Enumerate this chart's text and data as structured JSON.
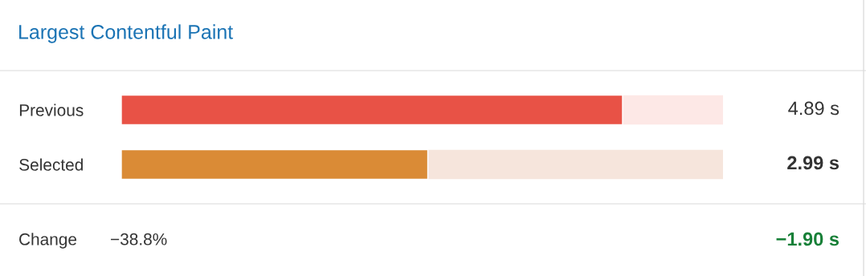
{
  "chart_data": {
    "type": "bar",
    "orientation": "horizontal",
    "title": "Largest Contentful Paint",
    "categories": [
      "Previous",
      "Selected"
    ],
    "values": [
      4.89,
      2.99
    ],
    "colors": [
      "#e85246",
      "#da8b36"
    ],
    "value_labels": [
      "4.89 s",
      "2.99 s"
    ],
    "xlim": [
      0,
      5.87
    ],
    "tick_labels": "y",
    "annotations": [
      "Change",
      "−38.8%",
      "−1.90 s"
    ]
  }
}
